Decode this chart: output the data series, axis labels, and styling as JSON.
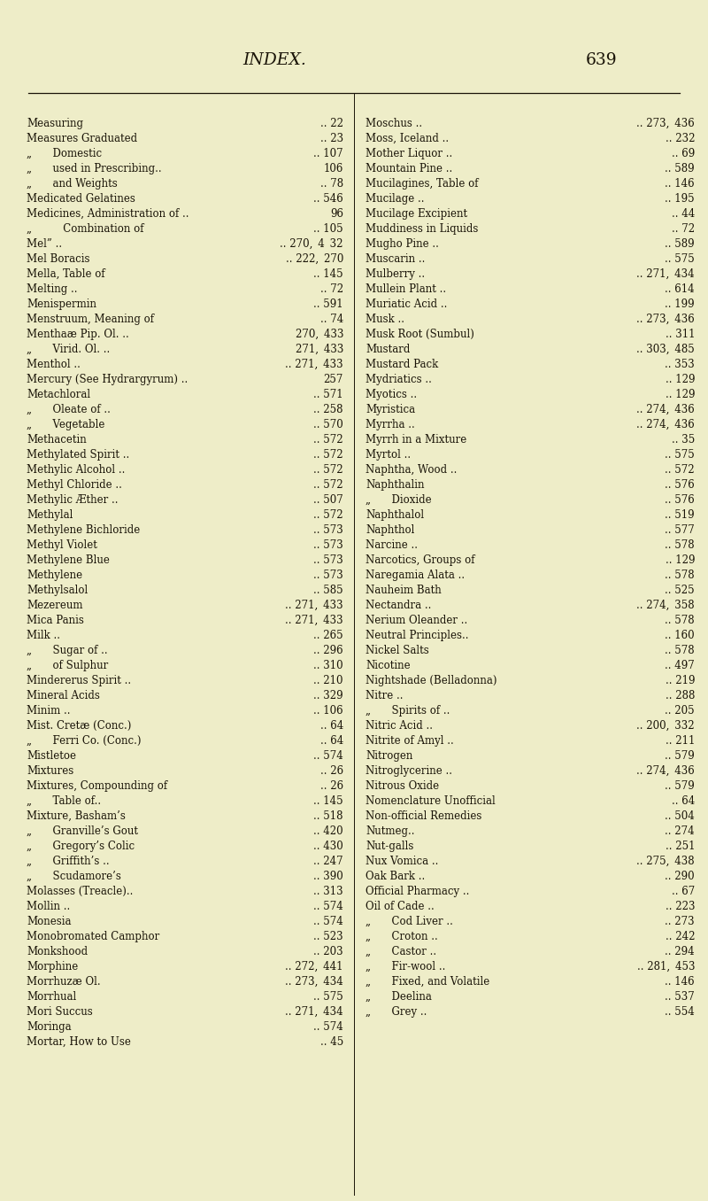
{
  "title": "INDEX.",
  "page_num": "639",
  "bg_color": "#eeedc8",
  "title_color": "#1a1408",
  "text_color": "#1a1408",
  "left_entries": [
    [
      "Measuring",
      "..",
      "22"
    ],
    [
      "Measures Graduated",
      "..",
      "23"
    ],
    [
      "„  Domestic",
      "..",
      "107"
    ],
    [
      "„  used in Prescribing..",
      "",
      "106"
    ],
    [
      "„  and Weights",
      "..",
      "78"
    ],
    [
      "Medicated Gelatines",
      "..",
      "546"
    ],
    [
      "Medicines, Administration of ..",
      "",
      "96"
    ],
    [
      "„   Combination of",
      "..",
      "105"
    ],
    [
      "Mel” ..",
      "..",
      "270, 4 32"
    ],
    [
      "Mel Boracis",
      "..",
      "222, 270"
    ],
    [
      "Mella, Table of",
      "..",
      "145"
    ],
    [
      "Melting ..",
      "..",
      "72"
    ],
    [
      "Menispermin",
      "..",
      "591"
    ],
    [
      "Menstruum, Meaning of",
      "..",
      "74"
    ],
    [
      "Menthaæ Pip. Ol. ..",
      "",
      "270, 433"
    ],
    [
      "„  Virid. Ol. ..",
      "",
      "271, 433"
    ],
    [
      "Menthol ..",
      "..",
      "271, 433"
    ],
    [
      "Mercury (See Hydrargyrum) ..",
      "",
      "257"
    ],
    [
      "Metachloral",
      "..",
      "571"
    ],
    [
      "„  Oleate of ..",
      "..",
      "258"
    ],
    [
      "„  Vegetable",
      "..",
      "570"
    ],
    [
      "Methacetin",
      "..",
      "572"
    ],
    [
      "Methylated Spirit ..",
      "..",
      "572"
    ],
    [
      "Methylic Alcohol ..",
      "..",
      "572"
    ],
    [
      "Methyl Chloride ..",
      "..",
      "572"
    ],
    [
      "Methylic Æther ..",
      "..",
      "507"
    ],
    [
      "Methylal",
      "..",
      "572"
    ],
    [
      "Methylene Bichloride",
      "..",
      "573"
    ],
    [
      "Methyl Violet",
      "..",
      "573"
    ],
    [
      "Methylene Blue",
      "..",
      "573"
    ],
    [
      "Methylene",
      "..",
      "573"
    ],
    [
      "Methylsalol",
      "..",
      "585"
    ],
    [
      "Mezereum",
      "..",
      "271, 433"
    ],
    [
      "Mica Panis",
      "..",
      "271, 433"
    ],
    [
      "Milk ..",
      "..",
      "265"
    ],
    [
      "„  Sugar of ..",
      "..",
      "296"
    ],
    [
      "„  of Sulphur",
      "..",
      "310"
    ],
    [
      "Mindererus Spirit ..",
      "..",
      "210"
    ],
    [
      "Mineral Acids",
      "..",
      "329"
    ],
    [
      "Minim ..",
      "..",
      "106"
    ],
    [
      "Mist. Cretæ (Conc.)",
      "..",
      "64"
    ],
    [
      "„  Ferri Co. (Conc.)",
      "..",
      "64"
    ],
    [
      "Mistletoe",
      "..",
      "574"
    ],
    [
      "Mixtures",
      "..",
      "26"
    ],
    [
      "Mixtures, Compounding of",
      "..",
      "26"
    ],
    [
      "„  Table of..",
      "..",
      "145"
    ],
    [
      "Mixture, Basham’s",
      "..",
      "518"
    ],
    [
      "„  Granville’s Gout",
      "..",
      "420"
    ],
    [
      "„  Gregory’s Colic",
      "..",
      "430"
    ],
    [
      "„  Griffith’s ..",
      "..",
      "247"
    ],
    [
      "„  Scudamore’s",
      "..",
      "390"
    ],
    [
      "Molasses (Treacle)..",
      "..",
      "313"
    ],
    [
      "Mollin ..",
      "..",
      "574"
    ],
    [
      "Monesia",
      "..",
      "574"
    ],
    [
      "Monobromated Camphor",
      "..",
      "523"
    ],
    [
      "Monkshood",
      "..",
      "203"
    ],
    [
      "Morphine",
      "..",
      "272, 441"
    ],
    [
      "Morrhuzæ Ol.",
      "..",
      "273, 434"
    ],
    [
      "Morrhual",
      "..",
      "575"
    ],
    [
      "Mori Succus",
      "..",
      "271, 434"
    ],
    [
      "Moringa",
      "..",
      "574"
    ],
    [
      "Mortar, How to Use",
      "..",
      "45"
    ]
  ],
  "right_entries": [
    [
      "Moschus ..",
      "..",
      "273, 436"
    ],
    [
      "Moss, Iceland ..",
      "..",
      "232"
    ],
    [
      "Mother Liquor ..",
      "..",
      "69"
    ],
    [
      "Mountain Pine ..",
      "..",
      "589"
    ],
    [
      "Mucilagines, Table of",
      "..",
      "146"
    ],
    [
      "Mucilage ..",
      "..",
      "195"
    ],
    [
      "Mucilage Excipient",
      "..",
      "44"
    ],
    [
      "Muddiness in Liquids",
      "..",
      "72"
    ],
    [
      "Mugho Pine ..",
      "..",
      "589"
    ],
    [
      "Muscarin ..",
      "..",
      "575"
    ],
    [
      "Mulberry ..",
      "..",
      "271, 434"
    ],
    [
      "Mullein Plant ..",
      "..",
      "614"
    ],
    [
      "Muriatic Acid ..",
      "..",
      "199"
    ],
    [
      "Musk ..",
      "..",
      "273, 436"
    ],
    [
      "Musk Root (Sumbul)",
      "..",
      "311"
    ],
    [
      "Mustard",
      "..",
      "303, 485"
    ],
    [
      "Mustard Pack",
      "..",
      "353"
    ],
    [
      "Mydriatics ..",
      "..",
      "129"
    ],
    [
      "Myotics ..",
      "..",
      "129"
    ],
    [
      "Myristica",
      "..",
      "274, 436"
    ],
    [
      "Myrrha ..",
      "..",
      "274, 436"
    ],
    [
      "Myrrh in a Mixture",
      "..",
      "35"
    ],
    [
      "Myrtol ..",
      "..",
      "575"
    ],
    [
      "Naphtha, Wood ..",
      "..",
      "572"
    ],
    [
      "Naphthalin",
      "..",
      "576"
    ],
    [
      "„  Dioxide",
      "..",
      "576"
    ],
    [
      "Naphthalol",
      "..",
      "519"
    ],
    [
      "Naphthol",
      "..",
      "577"
    ],
    [
      "Narcine ..",
      "..",
      "578"
    ],
    [
      "Narcotics, Groups of",
      "..",
      "129"
    ],
    [
      "Naregamia Alata ..",
      "..",
      "578"
    ],
    [
      "Nauheim Bath",
      "..",
      "525"
    ],
    [
      "Nectandra ..",
      "..",
      "274, 358"
    ],
    [
      "Nerium Oleander ..",
      "..",
      "578"
    ],
    [
      "Neutral Principles..",
      "..",
      "160"
    ],
    [
      "Nickel Salts",
      "..",
      "578"
    ],
    [
      "Nicotine",
      "..",
      "497"
    ],
    [
      "Nightshade (Belladonna)",
      "..",
      "219"
    ],
    [
      "Nitre ..",
      "..",
      "288"
    ],
    [
      "„  Spirits of ..",
      "..",
      "205"
    ],
    [
      "Nitric Acid ..",
      "..",
      "200, 332"
    ],
    [
      "Nitrite of Amyl ..",
      "..",
      "211"
    ],
    [
      "Nitrogen",
      "..",
      "579"
    ],
    [
      "Nitroglycerine ..",
      "..",
      "274, 436"
    ],
    [
      "Nitrous Oxide",
      "..",
      "579"
    ],
    [
      "Nomenclature Unofficial",
      "..",
      "64"
    ],
    [
      "Non-official Remedies",
      "..",
      "504"
    ],
    [
      "Nutmeg..",
      "..",
      "274"
    ],
    [
      "Nut-galls",
      "..",
      "251"
    ],
    [
      "Nux Vomica ..",
      "..",
      "275, 438"
    ],
    [
      "Oak Bark ..",
      "..",
      "290"
    ],
    [
      "Official Pharmacy ..",
      "..",
      "67"
    ],
    [
      "Oil of Cade ..",
      "..",
      "223"
    ],
    [
      "„  Cod Liver ..",
      "..",
      "273"
    ],
    [
      "„  Croton ..",
      "..",
      "242"
    ],
    [
      "„  Castor ..",
      "..",
      "294"
    ],
    [
      "„  Fir-wool ..",
      "..",
      "281, 453"
    ],
    [
      "„  Fixed, and Volatile",
      "..",
      "146"
    ],
    [
      "„  Deelina",
      "..",
      "537"
    ],
    [
      "„  Grey ..",
      "..",
      "554"
    ]
  ],
  "fig_width": 8.0,
  "fig_height": 13.56,
  "dpi": 100
}
